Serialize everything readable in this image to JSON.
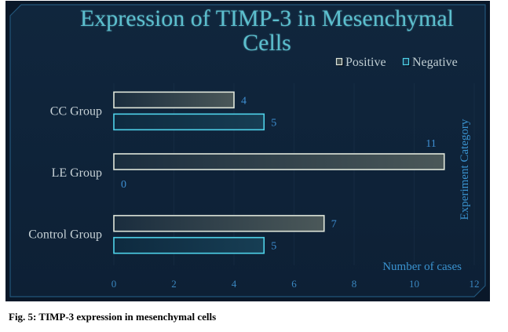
{
  "chart_data": {
    "type": "bar",
    "title": "Expression of TIMP-3 in Mesenchymal Cells",
    "categories": [
      "CC Group",
      "LE Group",
      "Control Group"
    ],
    "series": [
      {
        "name": "Positive",
        "values": [
          4,
          11,
          7
        ],
        "color": "#dfe6da"
      },
      {
        "name": "Negative",
        "values": [
          5,
          0,
          5
        ],
        "color": "#4fd3ea"
      }
    ],
    "xlabel": "Number of cases",
    "ylabel": "Experiment Category",
    "xlim": [
      0,
      12
    ],
    "xticks": [
      0,
      2,
      4,
      6,
      8,
      10,
      12
    ],
    "legend": "top-right",
    "grid": true,
    "data_labels": true
  },
  "figure": {
    "caption": "Fig. 5: TIMP-3 expression in mesenchymal cells"
  }
}
